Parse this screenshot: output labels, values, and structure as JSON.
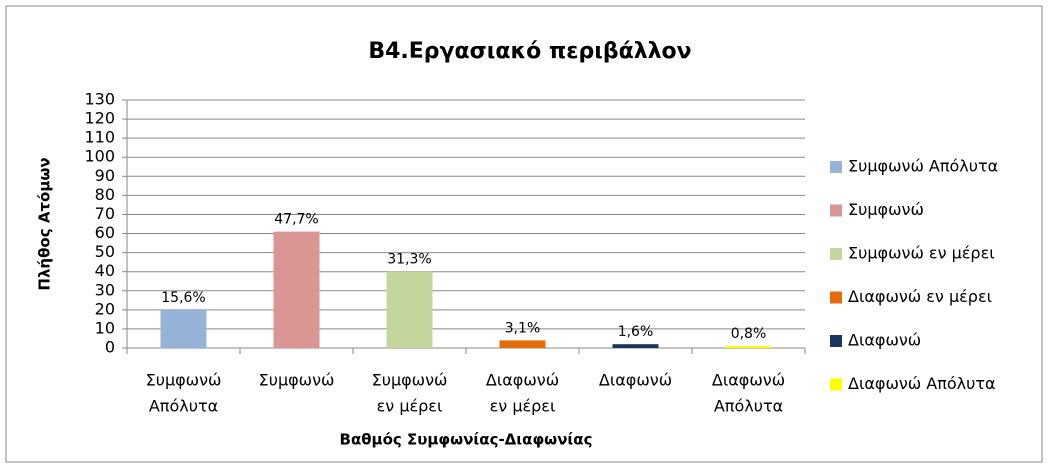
{
  "chart_data": {
    "type": "bar",
    "title": "B4.Εργασιακό περιβάλλον",
    "x_label": "Βαθμός Συμφωνίας-Διαφωνίας",
    "y_label": "Πλήθος Ατόμων",
    "categories": [
      [
        "Συμφωνώ",
        "Απόλυτα"
      ],
      [
        "Συμφωνώ"
      ],
      [
        "Συμφωνώ",
        "εν μέρει"
      ],
      [
        "Διαφωνώ",
        "εν μέρει"
      ],
      [
        "Διαφωνώ"
      ],
      [
        "Διαφωνώ",
        "Απόλυτα"
      ]
    ],
    "values": [
      20,
      61,
      40,
      4,
      2,
      1
    ],
    "data_labels": [
      "15,6%",
      "47,7%",
      "31,3%",
      "3,1%",
      "1,6%",
      "0,8%"
    ],
    "colors": [
      "#95b3d7",
      "#d99694",
      "#c3d69b",
      "#e46c0a",
      "#17375e",
      "#ffff00"
    ],
    "legend": [
      "Συμφωνώ Απόλυτα",
      "Συμφωνώ",
      "Συμφωνώ εν μέρει",
      "Διαφωνώ εν μέρει",
      "Διαφωνώ",
      "Διαφωνώ Απόλυτα"
    ],
    "legend_position": "right",
    "ylim": [
      0,
      130
    ],
    "yticks": [
      0,
      10,
      20,
      30,
      40,
      50,
      60,
      70,
      80,
      90,
      100,
      110,
      120,
      130
    ],
    "grid": true
  }
}
